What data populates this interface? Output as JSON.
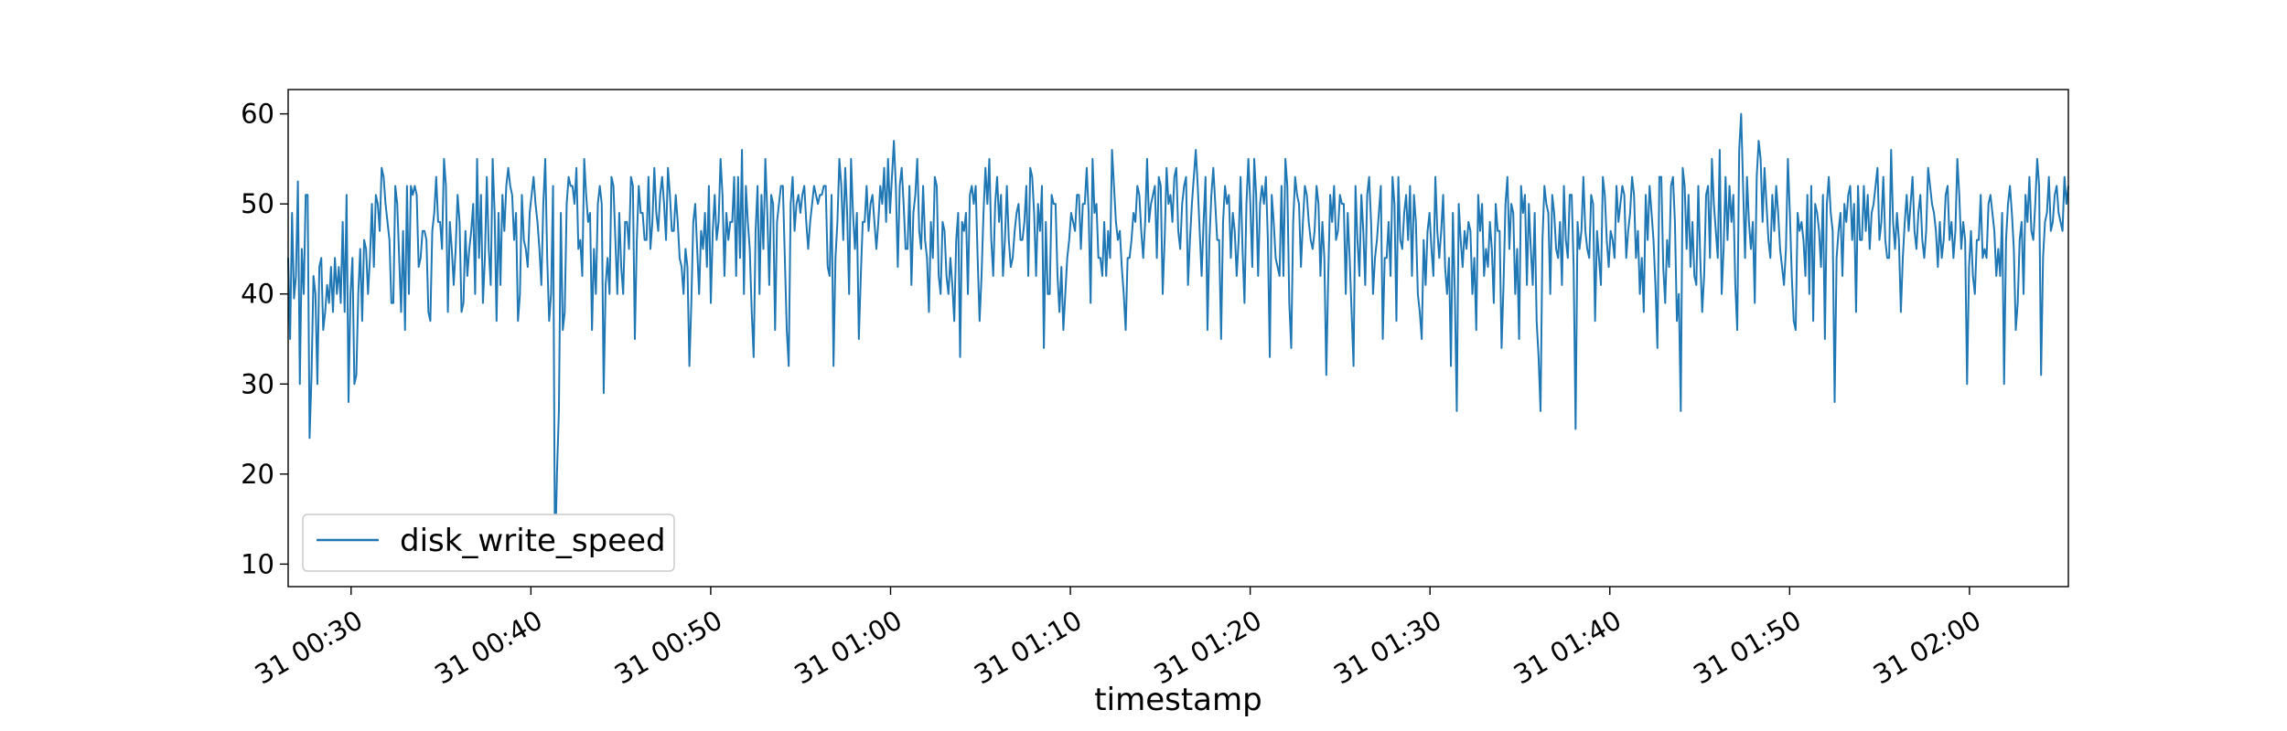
{
  "chart_data": {
    "type": "line",
    "title": "",
    "xlabel": "timestamp",
    "ylabel": "",
    "x_start": "31 00:26:30",
    "x_end": "31 02:05:30",
    "sample_interval": "10s",
    "xlim": [
      "31 00:26:30",
      "31 02:05:30"
    ],
    "ylim": [
      7.5,
      62.7
    ],
    "x_ticks": [
      {
        "time": "31 00:30:00",
        "label": "31 00:30"
      },
      {
        "time": "31 00:40:00",
        "label": "31 00:40"
      },
      {
        "time": "31 00:50:00",
        "label": "31 00:50"
      },
      {
        "time": "31 01:00:00",
        "label": "31 01:00"
      },
      {
        "time": "31 01:10:00",
        "label": "31 01:10"
      },
      {
        "time": "31 01:20:00",
        "label": "31 01:20"
      },
      {
        "time": "31 01:30:00",
        "label": "31 01:30"
      },
      {
        "time": "31 01:40:00",
        "label": "31 01:40"
      },
      {
        "time": "31 01:50:00",
        "label": "31 01:50"
      },
      {
        "time": "31 02:00:00",
        "label": "31 02:00"
      }
    ],
    "y_ticks": [
      10,
      20,
      30,
      40,
      50,
      60
    ],
    "grid": false,
    "legend": {
      "placement": "lower-left",
      "entries": [
        "disk_write_speed"
      ]
    },
    "series": [
      {
        "name": "disk_write_speed",
        "color": "#1f77b4",
        "values": [
          44,
          35,
          49,
          39.5,
          42,
          52.5,
          30,
          45,
          40,
          51,
          51,
          24,
          31,
          42,
          40,
          30,
          43,
          44,
          36,
          38,
          41,
          39,
          43,
          38,
          44,
          40,
          43,
          39,
          48,
          38,
          51,
          28,
          40,
          44,
          30,
          31,
          40,
          45,
          37,
          46,
          45,
          40,
          44,
          50,
          43,
          51,
          50,
          47,
          54,
          53,
          50,
          48,
          46,
          39,
          39,
          52,
          50,
          44,
          38,
          47,
          36,
          52,
          40,
          52,
          51,
          52,
          51,
          43,
          44,
          47,
          47,
          46,
          38,
          37,
          47,
          49,
          53,
          48,
          48,
          45,
          55,
          52,
          38,
          48,
          45,
          41,
          45,
          51,
          48,
          38,
          39,
          47,
          42,
          45,
          47,
          50,
          40,
          55,
          44,
          51,
          39,
          44,
          53,
          45,
          41,
          55,
          49,
          37,
          49,
          41,
          51,
          47,
          52,
          54,
          52,
          51,
          46,
          49,
          37,
          40,
          51,
          46,
          45,
          43,
          49,
          51,
          53,
          50,
          48,
          45,
          41,
          50,
          55,
          44,
          37,
          40,
          52,
          10,
          20,
          27,
          49,
          36,
          38,
          50,
          53,
          52,
          52,
          50,
          54,
          45,
          46,
          42,
          55,
          51,
          48,
          49,
          36,
          45,
          40,
          50,
          52,
          50,
          29,
          41,
          44,
          40,
          53,
          52,
          46,
          40,
          49,
          43,
          40,
          48,
          48,
          45,
          53,
          52,
          35,
          46,
          52,
          49,
          49,
          46,
          46,
          53,
          45,
          48,
          54,
          49,
          47,
          51,
          53,
          50,
          46,
          54,
          51,
          47,
          47,
          51,
          48,
          44,
          43,
          40,
          45,
          43,
          32,
          39,
          48,
          50,
          45,
          40,
          47,
          45,
          49,
          43,
          52,
          39,
          47,
          51,
          46,
          48,
          55,
          51,
          42,
          49,
          46,
          48,
          48,
          53,
          42,
          53,
          44,
          56,
          40,
          52,
          48,
          45,
          38,
          33,
          47,
          52,
          40,
          51,
          45,
          55,
          49,
          41,
          51,
          50,
          36,
          48,
          50,
          52,
          52,
          44,
          36,
          32,
          50,
          53,
          47,
          50,
          51,
          49,
          51,
          52,
          48,
          45,
          48,
          50,
          52,
          51,
          50,
          51,
          51,
          52,
          52,
          43,
          42,
          51,
          32,
          44,
          48,
          55,
          52,
          46,
          54,
          49,
          40,
          55,
          49,
          45,
          49,
          35,
          42,
          48,
          48,
          52,
          47,
          50,
          51,
          48,
          45,
          48,
          52,
          50,
          54,
          48,
          55,
          49,
          53,
          57,
          52,
          43,
          52,
          54,
          50,
          45,
          45,
          52,
          41,
          49,
          51,
          55,
          47,
          45,
          52,
          46,
          44,
          38,
          48,
          44,
          53,
          52,
          42,
          40,
          48,
          47,
          42,
          40,
          44,
          41,
          37,
          46,
          49,
          33,
          48,
          47,
          49,
          40,
          51,
          52,
          50,
          52,
          44,
          37,
          42,
          49,
          54,
          50,
          55,
          46,
          42,
          50,
          53,
          48,
          51,
          42,
          46,
          52,
          46,
          43,
          44,
          47,
          49,
          50,
          46,
          46,
          48,
          52,
          42,
          54,
          53,
          49,
          42,
          50,
          47,
          52,
          34,
          48,
          40,
          40,
          51,
          50,
          50,
          42,
          38,
          43,
          36,
          40,
          44,
          46,
          49,
          48,
          47,
          51,
          51,
          45,
          50,
          50,
          54,
          49,
          39,
          55,
          49,
          50,
          44,
          44,
          42,
          48,
          42,
          47,
          44,
          56,
          52,
          48,
          46,
          47,
          43,
          40,
          36,
          44,
          44,
          46,
          49,
          48,
          52,
          51,
          47,
          44,
          48,
          55,
          48,
          50,
          51,
          52,
          44,
          53,
          52,
          40,
          46,
          54,
          50,
          51,
          48,
          53,
          54,
          47,
          45,
          50,
          52,
          53,
          41,
          46,
          50,
          53,
          56,
          52,
          47,
          42,
          48,
          53,
          36,
          46,
          51,
          54,
          50,
          46,
          46,
          35,
          48,
          52,
          50,
          51,
          44,
          49,
          47,
          42,
          46,
          53,
          45,
          39,
          50,
          55,
          50,
          43,
          55,
          51,
          42,
          50,
          52,
          50,
          53,
          46,
          33,
          51,
          48,
          44,
          43,
          42,
          52,
          42,
          55,
          52,
          39,
          34,
          48,
          53,
          51,
          50,
          43,
          48,
          52,
          51,
          48,
          46,
          45,
          47,
          52,
          50,
          42,
          48,
          44,
          31,
          42,
          51,
          48,
          52,
          46,
          47,
          51,
          50,
          50,
          40,
          49,
          44,
          38,
          32,
          52,
          46,
          42,
          51,
          47,
          41,
          51,
          53,
          48,
          40,
          44,
          46,
          49,
          52,
          35,
          44,
          44,
          48,
          42,
          53,
          50,
          37,
          53,
          46,
          45,
          49,
          51,
          46,
          52,
          42,
          51,
          48,
          40,
          38,
          35,
          46,
          41,
          47,
          49,
          45,
          42,
          53,
          47,
          44,
          47,
          51,
          43,
          40,
          44,
          32,
          49,
          40,
          27,
          50,
          46,
          43,
          47,
          45,
          48,
          47,
          40,
          44,
          36,
          51,
          47,
          50,
          42,
          45,
          43,
          48,
          45,
          39,
          50,
          47,
          47,
          34,
          41,
          50,
          53,
          45,
          50,
          49,
          40,
          45,
          35,
          52,
          49,
          51,
          41,
          50,
          45,
          41,
          49,
          37,
          33,
          27,
          46,
          52,
          50,
          49,
          40,
          51,
          49,
          45,
          44,
          48,
          41,
          52,
          46,
          44,
          51,
          51,
          43,
          25,
          48,
          45,
          47,
          53,
          47,
          45,
          44,
          51,
          50,
          37,
          47,
          44,
          41,
          53,
          51,
          46,
          43,
          47,
          46,
          44,
          52,
          48,
          50,
          52,
          51,
          44,
          47,
          49,
          53,
          51,
          44,
          47,
          40,
          44,
          38,
          51,
          46,
          52,
          49,
          46,
          41,
          34,
          53,
          53,
          43,
          39,
          46,
          43,
          52,
          53,
          48,
          37,
          40,
          27,
          54,
          52,
          45,
          51,
          43,
          48,
          42,
          41,
          52,
          44,
          38,
          42,
          51,
          52,
          44,
          55,
          50,
          47,
          44,
          56,
          40,
          45,
          53,
          46,
          52,
          48,
          51,
          41,
          36,
          56,
          60,
          52,
          44,
          53,
          48,
          45,
          48,
          39,
          53,
          57,
          55,
          48,
          54,
          50,
          46,
          44,
          51,
          47,
          52,
          49,
          45,
          43,
          41,
          45,
          55,
          49,
          42,
          37,
          36,
          49,
          47,
          48,
          46,
          42,
          51,
          40,
          52,
          37,
          50,
          49,
          47,
          43,
          51,
          35,
          50,
          53,
          49,
          47,
          28,
          44,
          47,
          49,
          42,
          50,
          48,
          51,
          52,
          46,
          50,
          38,
          52,
          46,
          46,
          52,
          47,
          51,
          45,
          49,
          50,
          52,
          54,
          46,
          48,
          53,
          46,
          44,
          44,
          56,
          48,
          45,
          49,
          46,
          38,
          44,
          48,
          51,
          47,
          50,
          53,
          47,
          45,
          49,
          51,
          46,
          44,
          47,
          54,
          52,
          50,
          49,
          47,
          43,
          48,
          44,
          46,
          51,
          52,
          46,
          48,
          44,
          47,
          55,
          51,
          45,
          48,
          46,
          30,
          43,
          47,
          42,
          40,
          46,
          46,
          51,
          44,
          45,
          44,
          50,
          51,
          49,
          47,
          42,
          45,
          42,
          49,
          30,
          46,
          50,
          52,
          49,
          45,
          36,
          39,
          46,
          48,
          40,
          51,
          48,
          53,
          47,
          46,
          50,
          55,
          52,
          31,
          44,
          48,
          49,
          53,
          47,
          48,
          51,
          52,
          49,
          48,
          47,
          53,
          50,
          52
        ]
      }
    ]
  }
}
